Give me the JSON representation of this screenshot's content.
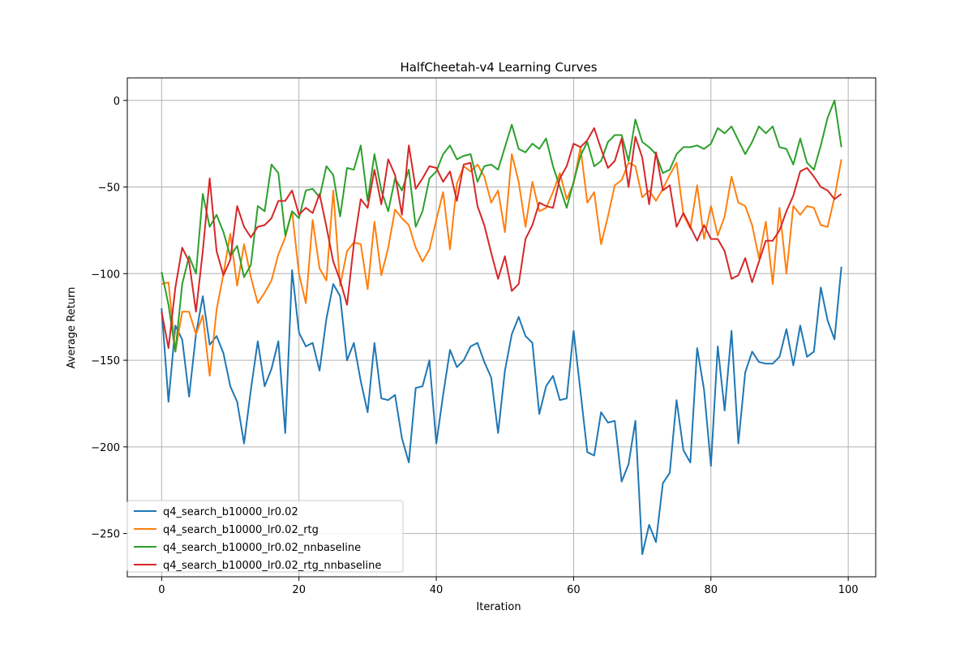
{
  "chart_data": {
    "type": "line",
    "title": "HalfCheetah-v4 Learning Curves",
    "xlabel": "Iteration",
    "ylabel": "Average Return",
    "xlim": [
      -5,
      104
    ],
    "ylim": [
      -275,
      13
    ],
    "xticks": [
      0,
      20,
      40,
      60,
      80,
      100
    ],
    "yticks": [
      -250,
      -200,
      -150,
      -100,
      -50,
      0
    ],
    "grid": true,
    "legend_position": "lower-left",
    "series": [
      {
        "name": "q4_search_b10000_lr0.02",
        "color": "#1f77b4",
        "values": [
          -120,
          -174,
          -130,
          -138,
          -171,
          -135,
          -113,
          -141,
          -136,
          -146,
          -165,
          -174,
          -198,
          -167,
          -139,
          -165,
          -155,
          -139,
          -192,
          -98,
          -134,
          -142,
          -140,
          -156,
          -126,
          -106,
          -113,
          -150,
          -140,
          -162,
          -180,
          -140,
          -172,
          -173,
          -170,
          -195,
          -209,
          -166,
          -165,
          -150,
          -198,
          -170,
          -144,
          -154,
          -150,
          -142,
          -140,
          -151,
          -160,
          -192,
          -156,
          -135,
          -125,
          -136,
          -140,
          -181,
          -165,
          -159,
          -173,
          -172,
          -133,
          -168,
          -203,
          -205,
          -180,
          -186,
          -185,
          -220,
          -210,
          -185,
          -262,
          -245,
          -255,
          -221,
          -215,
          -173,
          -202,
          -209,
          -143,
          -167,
          -211,
          -142,
          -179,
          -133,
          -198,
          -157,
          -145,
          -151,
          -152,
          -152,
          -148,
          -132,
          -153,
          -130,
          -148,
          -145,
          -108,
          -127,
          -138,
          -96
        ]
      },
      {
        "name": "q4_search_b10000_lr0.02_rtg",
        "color": "#ff7f0e",
        "values": [
          -106,
          -105,
          -145,
          -122,
          -122,
          -135,
          -124,
          -159,
          -121,
          -100,
          -77,
          -107,
          -83,
          -102,
          -117,
          -111,
          -104,
          -89,
          -79,
          -64,
          -100,
          -117,
          -69,
          -97,
          -104,
          -52,
          -107,
          -87,
          -82,
          -83,
          -109,
          -70,
          -101,
          -85,
          -63,
          -68,
          -72,
          -85,
          -93,
          -86,
          -69,
          -53,
          -86,
          -48,
          -38,
          -41,
          -37,
          -44,
          -59,
          -52,
          -76,
          -31,
          -47,
          -73,
          -47,
          -64,
          -62,
          -53,
          -42,
          -57,
          -48,
          -27,
          -59,
          -53,
          -83,
          -67,
          -49,
          -46,
          -36,
          -38,
          -56,
          -52,
          -58,
          -51,
          -43,
          -36,
          -66,
          -74,
          -49,
          -80,
          -61,
          -78,
          -67,
          -44,
          -59,
          -61,
          -72,
          -91,
          -70,
          -106,
          -62,
          -100,
          -61,
          -66,
          -61,
          -62,
          -72,
          -73,
          -56,
          -34
        ]
      },
      {
        "name": "q4_search_b10000_lr0.02_nnbaseline",
        "color": "#2ca02c",
        "values": [
          -99,
          -118,
          -145,
          -106,
          -90,
          -100,
          -54,
          -73,
          -66,
          -76,
          -90,
          -84,
          -102,
          -95,
          -61,
          -64,
          -37,
          -42,
          -78,
          -64,
          -68,
          -52,
          -51,
          -56,
          -38,
          -43,
          -67,
          -39,
          -40,
          -26,
          -58,
          -31,
          -52,
          -64,
          -45,
          -52,
          -40,
          -73,
          -64,
          -45,
          -41,
          -31,
          -26,
          -34,
          -32,
          -31,
          -47,
          -38,
          -37,
          -40,
          -27,
          -14,
          -28,
          -30,
          -25,
          -28,
          -22,
          -38,
          -50,
          -62,
          -47,
          -32,
          -24,
          -38,
          -35,
          -24,
          -20,
          -20,
          -35,
          -11,
          -24,
          -27,
          -31,
          -42,
          -40,
          -31,
          -27,
          -27,
          -26,
          -28,
          -25,
          -16,
          -19,
          -15,
          -23,
          -31,
          -24,
          -15,
          -19,
          -15,
          -27,
          -28,
          -37,
          -22,
          -36,
          -40,
          -26,
          -10,
          0,
          -27
        ]
      },
      {
        "name": "q4_search_b10000_lr0.02_rtg_nnbaseline",
        "color": "#d62728",
        "values": [
          -122,
          -143,
          -108,
          -85,
          -93,
          -122,
          -87,
          -45,
          -87,
          -101,
          -92,
          -61,
          -73,
          -79,
          -73,
          -72,
          -68,
          -58,
          -58,
          -52,
          -66,
          -62,
          -65,
          -54,
          -73,
          -93,
          -104,
          -118,
          -83,
          -57,
          -62,
          -40,
          -60,
          -34,
          -43,
          -66,
          -26,
          -51,
          -45,
          -38,
          -39,
          -47,
          -41,
          -58,
          -37,
          -36,
          -61,
          -72,
          -88,
          -103,
          -90,
          -110,
          -106,
          -80,
          -72,
          -59,
          -61,
          -62,
          -45,
          -38,
          -25,
          -27,
          -23,
          -16,
          -28,
          -39,
          -35,
          -22,
          -50,
          -21,
          -33,
          -60,
          -30,
          -52,
          -49,
          -73,
          -65,
          -73,
          -81,
          -72,
          -80,
          -80,
          -87,
          -103,
          -101,
          -91,
          -105,
          -93,
          -81,
          -81,
          -75,
          -64,
          -55,
          -41,
          -39,
          -44,
          -50,
          -52,
          -57,
          -54
        ]
      }
    ]
  }
}
